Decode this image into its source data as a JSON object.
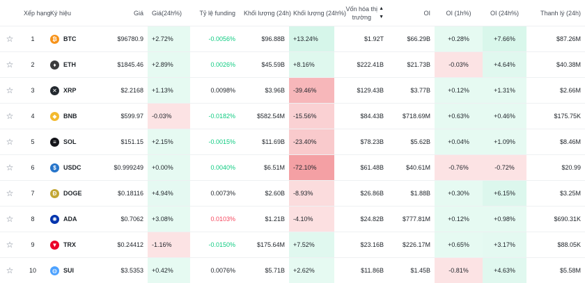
{
  "headers": {
    "rank": "Xếp hạng",
    "symbol": "Ký hiệu",
    "price": "Giá",
    "change": "Giá(24h%)",
    "funding": "Tỷ lệ funding",
    "volume": "Khối lượng (24h)",
    "volume_change": "Khối lượng (24h%)",
    "mcap_line1": "Vốn hóa thị",
    "mcap_line2": "trường",
    "oi": "OI",
    "oi_1h": "OI (1h%)",
    "oi_24h": "OI (24h%)",
    "liq": "Thanh lý (24h)"
  },
  "colors": {
    "funding_green": "#0ecb81",
    "funding_red": "#f6465d",
    "funding_black": "#1e2329"
  },
  "rows": [
    {
      "rank": "1",
      "symbol": "BTC",
      "icon": "bitcoin-icon",
      "glyph": "₿",
      "icon_color": "#f7931a",
      "price": "$96780.9",
      "change": "+2.72%",
      "change_level": 0.1,
      "funding": "-0.0056%",
      "funding_color": "green",
      "volume": "$96.88B",
      "volume_change": "+13.24%",
      "volume_change_level": 0.4,
      "mcap": "$1.92T",
      "oi": "$66.29B",
      "oi_1h": "+0.28%",
      "oi_1h_level": 0.1,
      "oi_24h": "+7.66%",
      "oi_24h_level": 0.35,
      "liq": "$87.26M"
    },
    {
      "rank": "2",
      "symbol": "ETH",
      "icon": "ethereum-icon",
      "glyph": "♦",
      "icon_color": "#3c3c3d",
      "price": "$1845.46",
      "change": "+2.89%",
      "change_level": 0.1,
      "funding": "0.0026%",
      "funding_color": "green",
      "volume": "$45.59B",
      "volume_change": "+8.16%",
      "volume_change_level": 0.25,
      "mcap": "$222.41B",
      "oi": "$21.73B",
      "oi_1h": "-0.03%",
      "oi_1h_level": 0.1,
      "oi_24h": "+4.64%",
      "oi_24h_level": 0.22,
      "liq": "$40.38M"
    },
    {
      "rank": "3",
      "symbol": "XRP",
      "icon": "xrp-icon",
      "glyph": "✕",
      "icon_color": "#23292f",
      "price": "$2.2168",
      "change": "+1.13%",
      "change_level": 0.08,
      "funding": "0.0098%",
      "funding_color": "black",
      "volume": "$3.96B",
      "volume_change": "-39.46%",
      "volume_change_level": 0.7,
      "mcap": "$129.43B",
      "oi": "$3.77B",
      "oi_1h": "+0.12%",
      "oi_1h_level": 0.1,
      "oi_24h": "+1.31%",
      "oi_24h_level": 0.1,
      "liq": "$2.66M"
    },
    {
      "rank": "4",
      "symbol": "BNB",
      "icon": "bnb-icon",
      "glyph": "◆",
      "icon_color": "#f3ba2f",
      "price": "$599.97",
      "change": "-0.03%",
      "change_level": 0.1,
      "funding": "-0.0182%",
      "funding_color": "green",
      "volume": "$582.54M",
      "volume_change": "-15.56%",
      "volume_change_level": 0.35,
      "mcap": "$84.43B",
      "oi": "$718.69M",
      "oi_1h": "+0.63%",
      "oi_1h_level": 0.1,
      "oi_24h": "+0.46%",
      "oi_24h_level": 0.1,
      "liq": "$175.75K"
    },
    {
      "rank": "5",
      "symbol": "SOL",
      "icon": "solana-icon",
      "glyph": "≡",
      "icon_color": "#14151a",
      "price": "$151.15",
      "change": "+2.15%",
      "change_level": 0.1,
      "funding": "-0.0015%",
      "funding_color": "green",
      "volume": "$11.69B",
      "volume_change": "-23.40%",
      "volume_change_level": 0.45,
      "mcap": "$78.23B",
      "oi": "$5.62B",
      "oi_1h": "+0.04%",
      "oi_1h_level": 0.1,
      "oi_24h": "+1.09%",
      "oi_24h_level": 0.1,
      "liq": "$8.46M"
    },
    {
      "rank": "6",
      "symbol": "USDC",
      "icon": "usdc-icon",
      "glyph": "$",
      "icon_color": "#2775ca",
      "price": "$0.999249",
      "change": "+0.00%",
      "change_level": 0.1,
      "funding": "0.0040%",
      "funding_color": "green",
      "volume": "$6.51M",
      "volume_change": "-72.10%",
      "volume_change_level": 1.0,
      "mcap": "$61.48B",
      "oi": "$40.61M",
      "oi_1h": "-0.76%",
      "oi_1h_level": 0.1,
      "oi_24h": "-0.72%",
      "oi_24h_level": 0.1,
      "liq": "$20.99"
    },
    {
      "rank": "7",
      "symbol": "DOGE",
      "icon": "dogecoin-icon",
      "glyph": "Ð",
      "icon_color": "#c2a633",
      "price": "$0.18116",
      "change": "+4.94%",
      "change_level": 0.12,
      "funding": "0.0073%",
      "funding_color": "black",
      "volume": "$2.60B",
      "volume_change": "-8.93%",
      "volume_change_level": 0.2,
      "mcap": "$26.86B",
      "oi": "$1.88B",
      "oi_1h": "+0.30%",
      "oi_1h_level": 0.1,
      "oi_24h": "+6.15%",
      "oi_24h_level": 0.3,
      "liq": "$3.25M"
    },
    {
      "rank": "8",
      "symbol": "ADA",
      "icon": "cardano-icon",
      "glyph": "✺",
      "icon_color": "#0033ad",
      "price": "$0.7062",
      "change": "+3.08%",
      "change_level": 0.1,
      "funding": "0.0103%",
      "funding_color": "red",
      "volume": "$1.21B",
      "volume_change": "-4.10%",
      "volume_change_level": 0.15,
      "mcap": "$24.82B",
      "oi": "$777.81M",
      "oi_1h": "+0.12%",
      "oi_1h_level": 0.1,
      "oi_24h": "+0.98%",
      "oi_24h_level": 0.1,
      "liq": "$690.31K"
    },
    {
      "rank": "9",
      "symbol": "TRX",
      "icon": "tron-icon",
      "glyph": "▼",
      "icon_color": "#eb0029",
      "price": "$0.24412",
      "change": "-1.16%",
      "change_level": 0.1,
      "funding": "-0.0150%",
      "funding_color": "green",
      "volume": "$175.64M",
      "volume_change": "+7.52%",
      "volume_change_level": 0.22,
      "mcap": "$23.16B",
      "oi": "$226.17M",
      "oi_1h": "+0.65%",
      "oi_1h_level": 0.1,
      "oi_24h": "+3.17%",
      "oi_24h_level": 0.15,
      "liq": "$88.05K"
    },
    {
      "rank": "10",
      "symbol": "SUI",
      "icon": "sui-icon",
      "glyph": "◍",
      "icon_color": "#4da2ff",
      "price": "$3.5353",
      "change": "+0.42%",
      "change_level": 0.1,
      "funding": "0.0076%",
      "funding_color": "black",
      "volume": "$5.71B",
      "volume_change": "+2.62%",
      "volume_change_level": 0.1,
      "mcap": "$11.86B",
      "oi": "$1.45B",
      "oi_1h": "-0.81%",
      "oi_1h_level": 0.1,
      "oi_24h": "+4.63%",
      "oi_24h_level": 0.22,
      "liq": "$5.58M"
    }
  ]
}
